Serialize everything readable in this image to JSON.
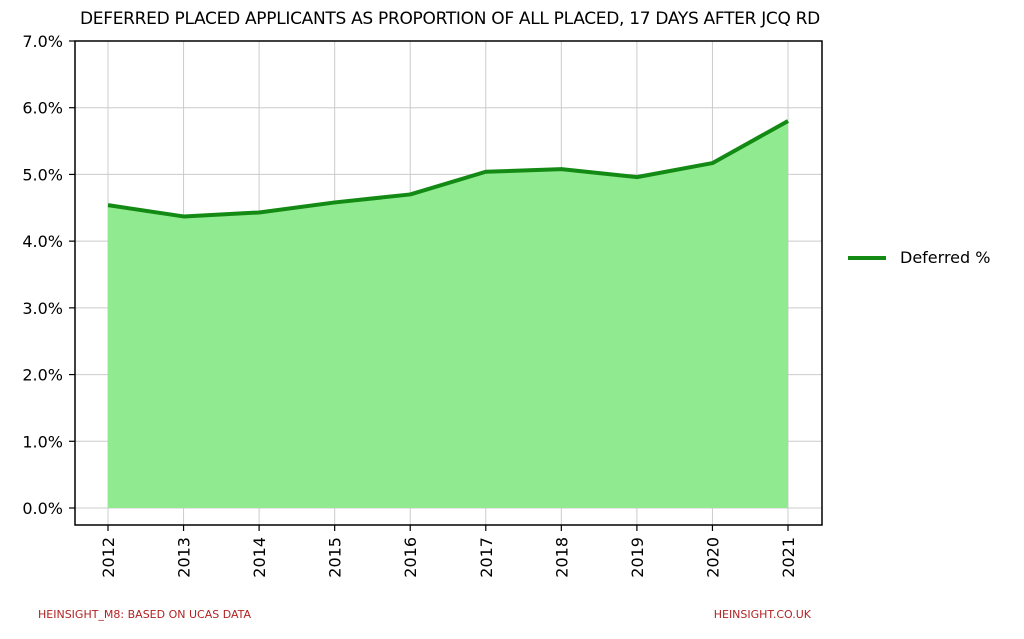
{
  "chart_data": {
    "type": "area",
    "title": "DEFERRED PLACED APPLICANTS AS PROPORTION OF ALL PLACED, 17 DAYS AFTER JCQ RD",
    "x": [
      "2012",
      "2013",
      "2014",
      "2015",
      "2016",
      "2017",
      "2018",
      "2019",
      "2020",
      "2021"
    ],
    "series": [
      {
        "name": "Deferred %",
        "values": [
          4.54,
          4.37,
          4.43,
          4.58,
          4.7,
          5.04,
          5.08,
          4.96,
          5.17,
          5.8
        ]
      }
    ],
    "y_ticks": [
      "0.0%",
      "1.0%",
      "2.0%",
      "3.0%",
      "4.0%",
      "5.0%",
      "6.0%",
      "7.0%"
    ],
    "ylim": [
      0,
      7
    ],
    "grid": true,
    "legend_position": "right",
    "line_color": "#138a13",
    "fill_color": "#90ea90",
    "grid_color": "#cccccc"
  },
  "footer": {
    "left": "HEINSIGHT_M8: BASED ON UCAS DATA",
    "right": "HEINSIGHT.CO.UK"
  }
}
